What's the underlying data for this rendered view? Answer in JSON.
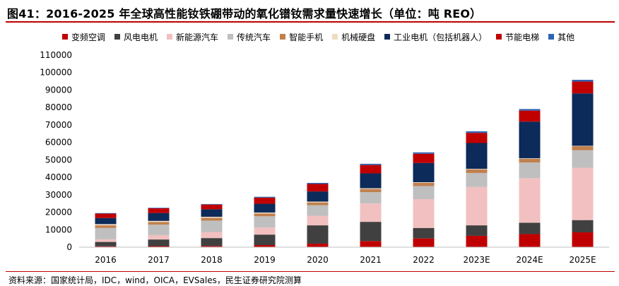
{
  "title": "图41：2016-2025 年全球高性能钕铁硼带动的氧化镨钕需求量快速增长（单位：吨 REO）",
  "source": "资料来源：国家统计局，IDC，wind，OICA，EVSales，民生证券研究院测算",
  "chart_data": {
    "type": "bar",
    "stacked": true,
    "title": "图41：2016-2025 年全球高性能钕铁硼带动的氧化镨钕需求量快速增长（单位：吨 REO）",
    "xlabel": "",
    "ylabel": "",
    "ylim": [
      0,
      110000
    ],
    "yticks": [
      0,
      10000,
      20000,
      30000,
      40000,
      50000,
      60000,
      70000,
      80000,
      90000,
      100000,
      110000
    ],
    "grid": false,
    "legend_position": "top",
    "categories": [
      "2016",
      "2017",
      "2018",
      "2019",
      "2020",
      "2021",
      "2022",
      "2023E",
      "2024E",
      "2025E"
    ],
    "series": [
      {
        "name": "变频空调",
        "color": "#c00000",
        "values": [
          500,
          600,
          700,
          1200,
          2000,
          3500,
          5000,
          6500,
          7500,
          8500
        ]
      },
      {
        "name": "风电电机",
        "color": "#404040",
        "values": [
          2500,
          3800,
          4500,
          6000,
          10500,
          11000,
          6000,
          6000,
          6500,
          7000
        ]
      },
      {
        "name": "新能源汽车",
        "color": "#f2c0c0",
        "values": [
          1500,
          2500,
          3500,
          4000,
          5500,
          10500,
          16500,
          22000,
          25500,
          30000
        ]
      },
      {
        "name": "传统汽车",
        "color": "#bfbfbf",
        "values": [
          6500,
          6000,
          6500,
          6500,
          6000,
          6500,
          7500,
          8000,
          9000,
          10000
        ]
      },
      {
        "name": "智能手机",
        "color": "#c0804e",
        "values": [
          1500,
          1500,
          1600,
          1600,
          1600,
          1800,
          1800,
          2000,
          2100,
          2300
        ]
      },
      {
        "name": "机械硬盘",
        "color": "#f0dcc0",
        "values": [
          700,
          650,
          600,
          550,
          500,
          450,
          400,
          350,
          300,
          250
        ]
      },
      {
        "name": "工业电机（包括机器人）",
        "color": "#0c2a5a",
        "values": [
          3500,
          4500,
          4300,
          5000,
          5800,
          8500,
          11000,
          14800,
          21000,
          30000
        ]
      },
      {
        "name": "节能电梯",
        "color": "#c00000",
        "values": [
          2500,
          2700,
          2700,
          3500,
          4300,
          4800,
          5300,
          5800,
          6300,
          6800
        ]
      },
      {
        "name": "其他",
        "color": "#2e64b4",
        "values": [
          300,
          300,
          300,
          500,
          600,
          700,
          800,
          900,
          900,
          1000
        ]
      }
    ]
  }
}
